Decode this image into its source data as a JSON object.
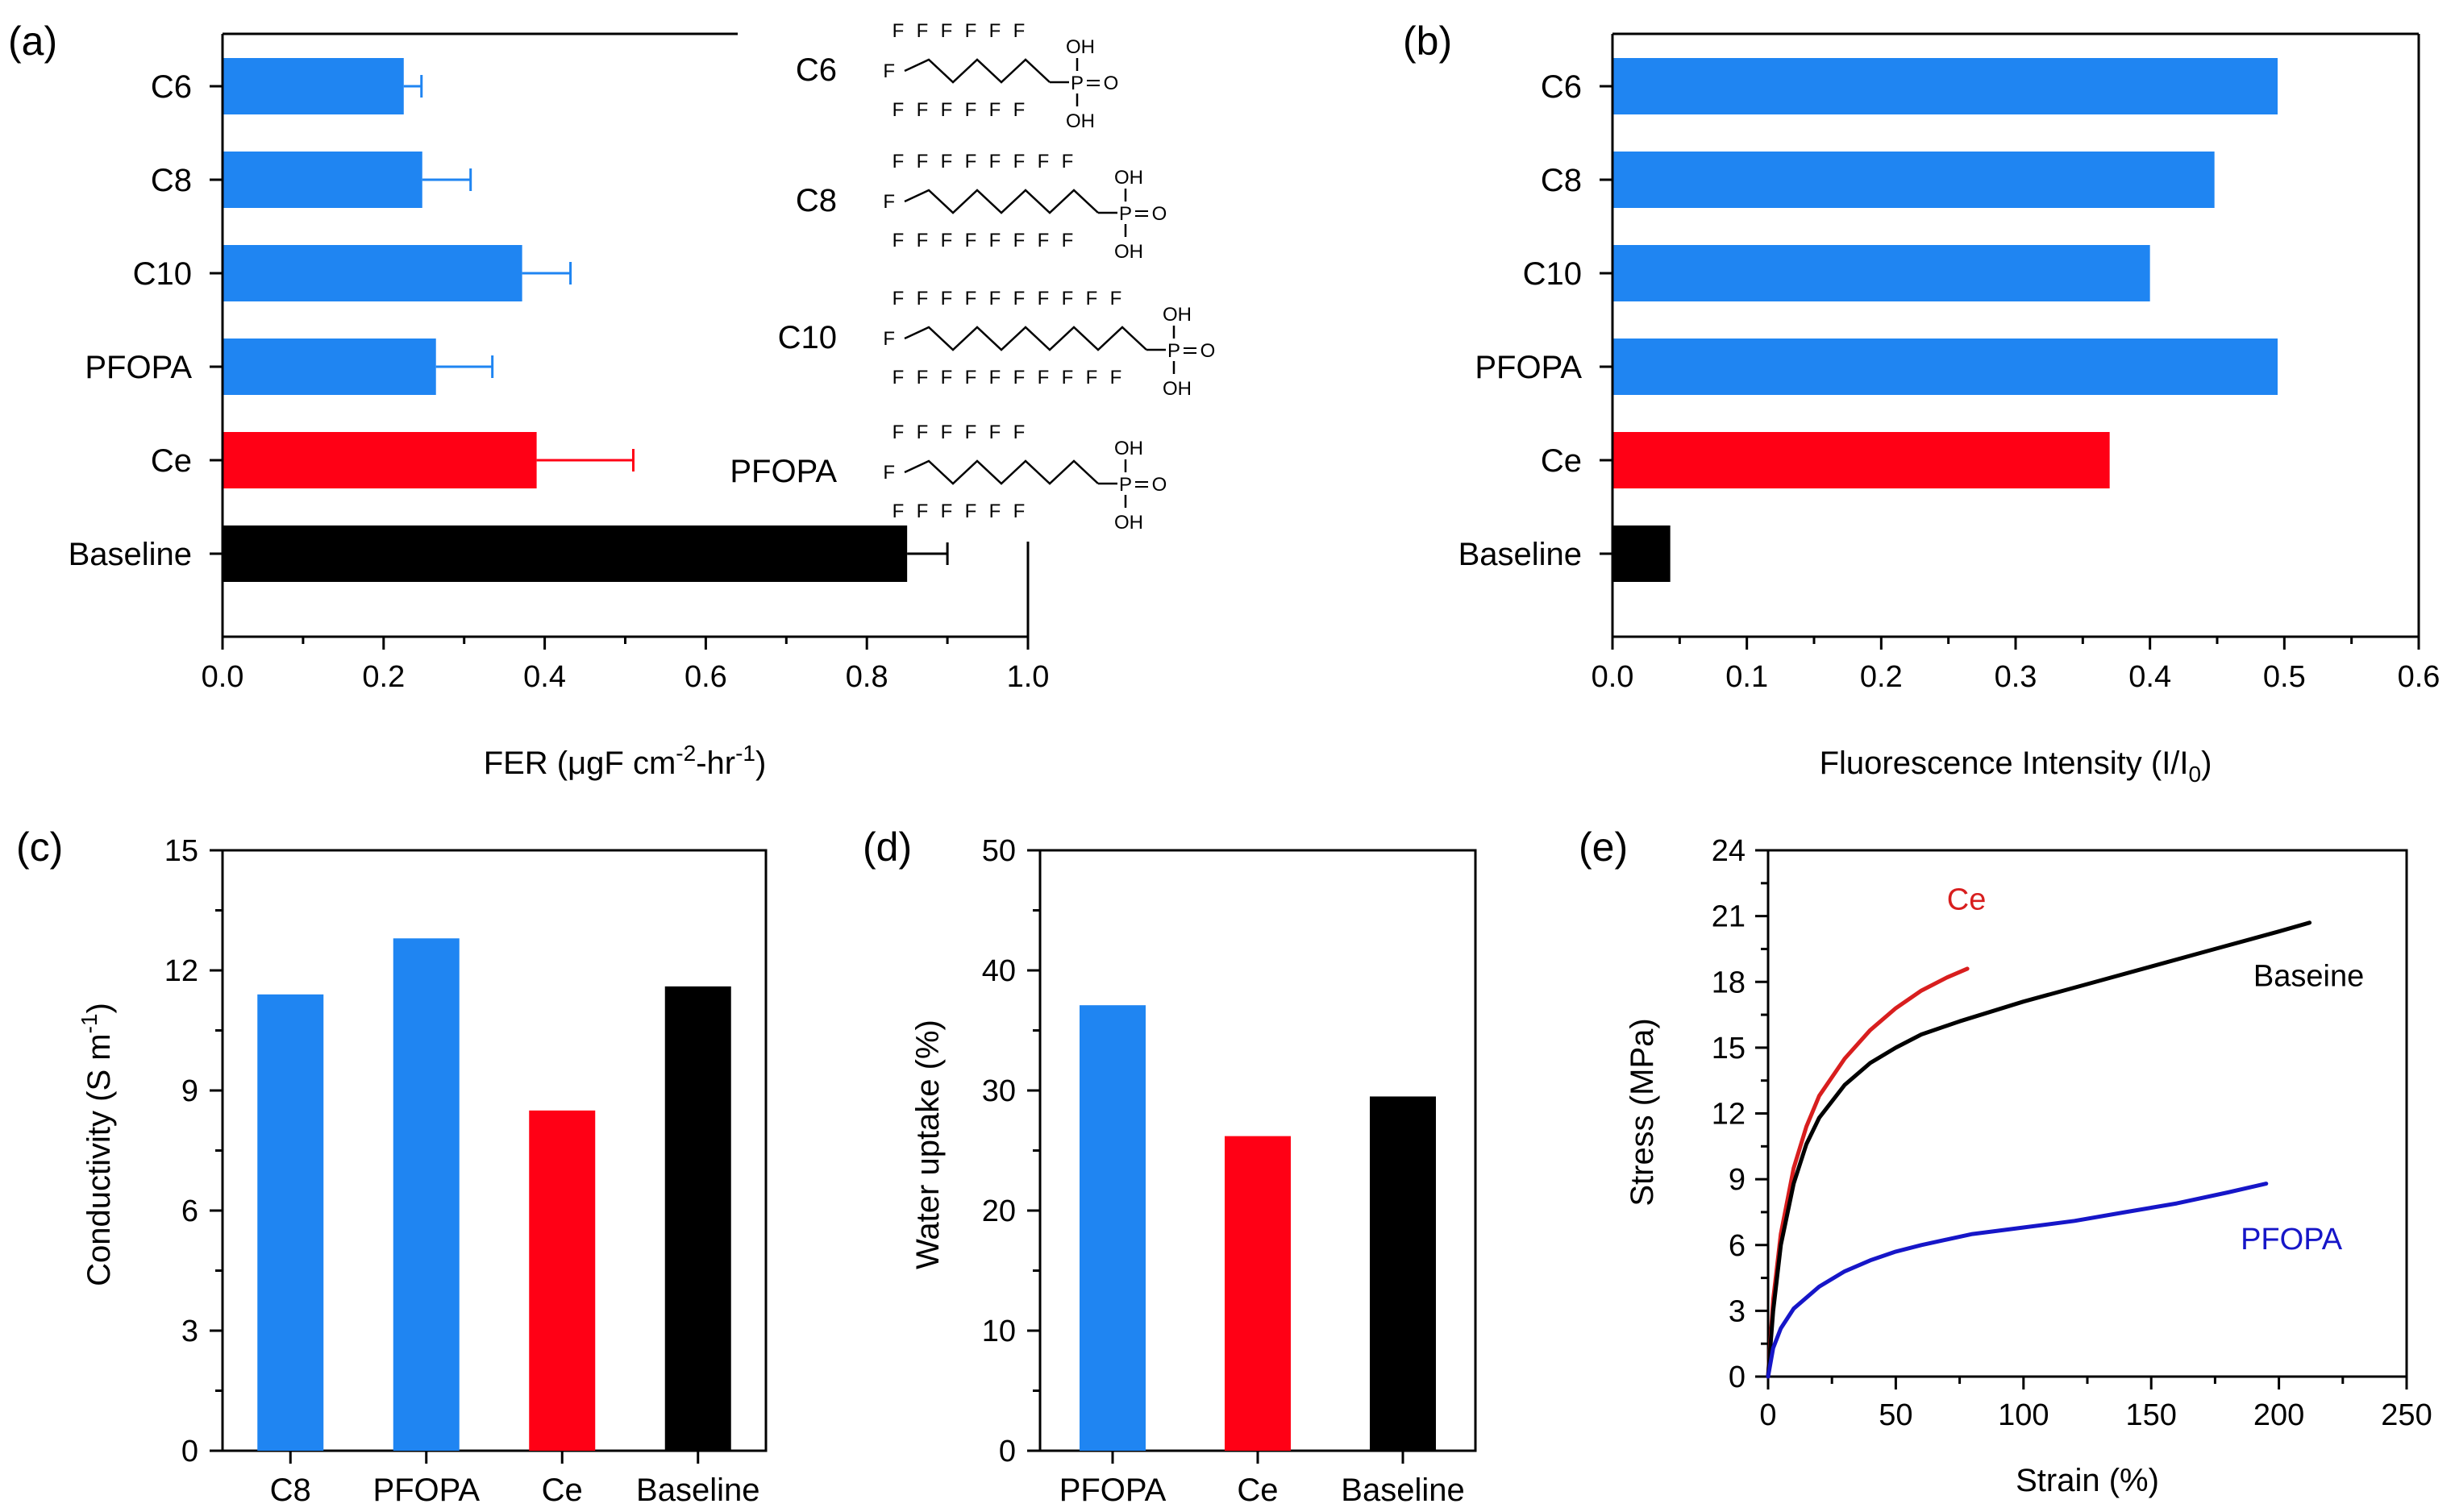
{
  "chart_data": [
    {
      "panel": "(a)",
      "type": "bar",
      "orientation": "horizontal",
      "categories": [
        "C6",
        "C8",
        "C10",
        "PFOPA",
        "Ce",
        "Baseline"
      ],
      "values": [
        0.225,
        0.248,
        0.372,
        0.265,
        0.39,
        0.85
      ],
      "errors": [
        0.022,
        0.06,
        0.06,
        0.07,
        0.12,
        0.05
      ],
      "colors": [
        "#1f85f2",
        "#1f85f2",
        "#1f85f2",
        "#1f85f2",
        "#ff0015",
        "#000000"
      ],
      "xlim": [
        0,
        1.0
      ],
      "xticks": [
        "0.0",
        "0.2",
        "0.4",
        "0.6",
        "0.8",
        "1.0"
      ],
      "xlabel": "FER (μgF cm",
      "xlabel_sup1": "-2",
      "xlabel_mid": "-hr",
      "xlabel_sup2": "-1",
      "xlabel_end": ")",
      "structures": [
        {
          "label": "C6",
          "cf2_units": 5,
          "spacer": false
        },
        {
          "label": "C8",
          "cf2_units": 7,
          "spacer": false
        },
        {
          "label": "C10",
          "cf2_units": 9,
          "spacer": false
        },
        {
          "label": "PFOPA",
          "cf2_units": 5,
          "spacer": true
        }
      ],
      "atoms": {
        "f": "F",
        "p": "P",
        "o": "O",
        "oh": "OH"
      }
    },
    {
      "panel": "(b)",
      "type": "bar",
      "orientation": "horizontal",
      "categories": [
        "C6",
        "C8",
        "C10",
        "PFOPA",
        "Ce",
        "Baseline"
      ],
      "values": [
        0.495,
        0.448,
        0.4,
        0.495,
        0.37,
        0.043
      ],
      "colors": [
        "#1f85f2",
        "#1f85f2",
        "#1f85f2",
        "#1f85f2",
        "#ff0015",
        "#000000"
      ],
      "xlim": [
        0,
        0.6
      ],
      "xticks": [
        "0.0",
        "0.1",
        "0.2",
        "0.3",
        "0.4",
        "0.5",
        "0.6"
      ],
      "xlabel": "Fluorescence Intensity (I/I",
      "xlabel_sub": "0",
      "xlabel_end": ")"
    },
    {
      "panel": "(c)",
      "type": "bar",
      "categories": [
        "C8",
        "PFOPA",
        "Ce",
        "Baseline"
      ],
      "values": [
        11.4,
        12.8,
        8.5,
        11.6
      ],
      "colors": [
        "#1f85f2",
        "#1f85f2",
        "#ff0015",
        "#000000"
      ],
      "ylim": [
        0,
        15
      ],
      "yticks": [
        "0",
        "3",
        "6",
        "9",
        "12",
        "15"
      ],
      "ylabel": "Conductivity (S m",
      "ylabel_sup": "-1",
      "ylabel_end": ")"
    },
    {
      "panel": "(d)",
      "type": "bar",
      "categories": [
        "PFOPA",
        "Ce",
        "Baseline"
      ],
      "values": [
        37.1,
        26.2,
        29.5
      ],
      "colors": [
        "#1f85f2",
        "#ff0015",
        "#000000"
      ],
      "ylim": [
        0,
        50
      ],
      "yticks": [
        "0",
        "10",
        "20",
        "30",
        "40",
        "50"
      ],
      "ylabel": "Water uptake (%)"
    },
    {
      "panel": "(e)",
      "type": "line",
      "xlim": [
        0,
        250
      ],
      "ylim": [
        0,
        24
      ],
      "xticks": [
        "0",
        "50",
        "100",
        "150",
        "200",
        "250"
      ],
      "yticks": [
        "0",
        "3",
        "6",
        "9",
        "12",
        "15",
        "18",
        "21",
        "24"
      ],
      "xlabel": "Strain (%)",
      "ylabel": "Stress (MPa)",
      "series": [
        {
          "name": "Ce",
          "color": "#d81e1e",
          "x": [
            0,
            2,
            5,
            10,
            15,
            20,
            30,
            40,
            50,
            60,
            70,
            78
          ],
          "y": [
            0,
            3.5,
            6.5,
            9.5,
            11.4,
            12.8,
            14.5,
            15.8,
            16.8,
            17.6,
            18.2,
            18.6
          ]
        },
        {
          "name": "Baseine",
          "color": "#000000",
          "x": [
            0,
            2,
            5,
            10,
            15,
            20,
            30,
            40,
            50,
            60,
            75,
            100,
            125,
            150,
            175,
            200,
            212
          ],
          "y": [
            0,
            3.0,
            6.0,
            8.8,
            10.6,
            11.8,
            13.3,
            14.3,
            15.0,
            15.6,
            16.2,
            17.1,
            17.9,
            18.7,
            19.5,
            20.3,
            20.7
          ]
        },
        {
          "name": "PFOPA",
          "color": "#1616c8",
          "x": [
            0,
            2,
            5,
            10,
            20,
            30,
            40,
            50,
            60,
            80,
            100,
            120,
            140,
            160,
            180,
            195
          ],
          "y": [
            0,
            1.3,
            2.2,
            3.1,
            4.1,
            4.8,
            5.3,
            5.7,
            6.0,
            6.5,
            6.8,
            7.1,
            7.5,
            7.9,
            8.4,
            8.8
          ]
        }
      ]
    }
  ]
}
